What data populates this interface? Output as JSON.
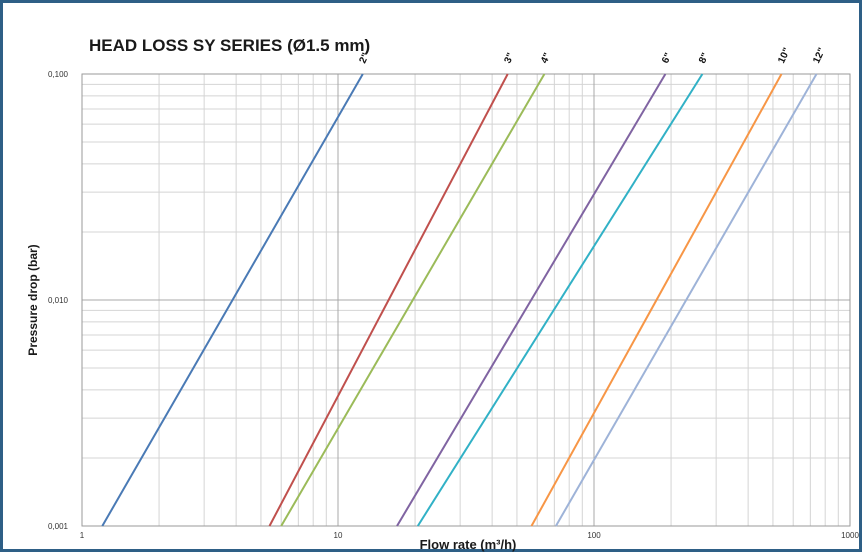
{
  "chart_data": {
    "type": "line",
    "title": "HEAD LOSS SY SERIES (Ø1.5 mm)",
    "xlabel": "Flow rate (m³/h)",
    "ylabel": "Pressure drop (bar)",
    "x_scale": "log",
    "y_scale": "log",
    "xlim": [
      1,
      1000
    ],
    "ylim": [
      0.001,
      0.1
    ],
    "x_ticks": [
      {
        "value": 1,
        "label": "1"
      },
      {
        "value": 10,
        "label": "10"
      },
      {
        "value": 100,
        "label": "100"
      },
      {
        "value": 1000,
        "label": "1000"
      }
    ],
    "y_ticks": [
      {
        "value": 0.001,
        "label": "0,001"
      },
      {
        "value": 0.01,
        "label": "0,010"
      },
      {
        "value": 0.1,
        "label": "0,100"
      }
    ],
    "grid": true,
    "series": [
      {
        "name": "2\"",
        "color": "#4a7ab5",
        "x": [
          1.2,
          12.5
        ],
        "y": [
          0.001,
          0.1
        ]
      },
      {
        "name": "3\"",
        "color": "#c0504d",
        "x": [
          5.4,
          46
        ],
        "y": [
          0.001,
          0.1
        ]
      },
      {
        "name": "4\"",
        "color": "#9bbb59",
        "x": [
          6.0,
          64
        ],
        "y": [
          0.001,
          0.1
        ]
      },
      {
        "name": "6\"",
        "color": "#8064a2",
        "x": [
          17,
          190
        ],
        "y": [
          0.001,
          0.1
        ]
      },
      {
        "name": "8\"",
        "color": "#31b1c6",
        "x": [
          20.5,
          265
        ],
        "y": [
          0.001,
          0.1
        ]
      },
      {
        "name": "10\"",
        "color": "#f79646",
        "x": [
          57,
          540
        ],
        "y": [
          0.001,
          0.1
        ]
      },
      {
        "name": "12\"",
        "color": "#9eb3d8",
        "x": [
          71,
          740
        ],
        "y": [
          0.001,
          0.1
        ]
      }
    ]
  }
}
